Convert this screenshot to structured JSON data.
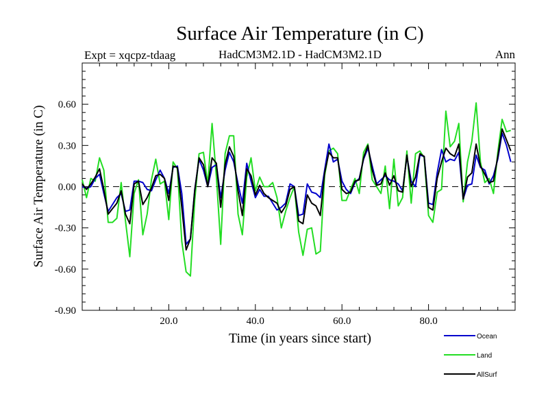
{
  "header": {
    "title": "Surface Air Temperature (in C)",
    "expt": "Expt = xqcpz-tdaag",
    "model": "HadCM3M2.1D - HadCM3M2.1D",
    "period": "Ann"
  },
  "chart_data": {
    "type": "line",
    "title": "Surface Air Temperature (in C)",
    "xlabel": "Time (in years since start)",
    "ylabel": "Surface Air Temperature (in C)",
    "xlim": [
      0,
      100
    ],
    "ylim": [
      -0.9,
      0.9
    ],
    "xticks": [
      20,
      40,
      60,
      80
    ],
    "xtick_labels": [
      "20.0",
      "40.0",
      "60.0",
      "80.0"
    ],
    "yticks": [
      -0.9,
      -0.6,
      -0.3,
      0.0,
      0.3,
      0.6
    ],
    "ytick_labels": [
      "-0.90",
      "-0.60",
      "-0.30",
      "0.00",
      "0.30",
      "0.60"
    ],
    "zero_line": "dashed",
    "legend_position": "bottom-right",
    "x": [
      0,
      1,
      2,
      3,
      4,
      5,
      6,
      7,
      8,
      9,
      10,
      11,
      12,
      13,
      14,
      15,
      16,
      17,
      18,
      19,
      20,
      21,
      22,
      23,
      24,
      25,
      26,
      27,
      28,
      29,
      30,
      31,
      32,
      33,
      34,
      35,
      36,
      37,
      38,
      39,
      40,
      41,
      42,
      43,
      44,
      45,
      46,
      47,
      48,
      49,
      50,
      51,
      52,
      53,
      54,
      55,
      56,
      57,
      58,
      59,
      60,
      61,
      62,
      63,
      64,
      65,
      66,
      67,
      68,
      69,
      70,
      71,
      72,
      73,
      74,
      75,
      76,
      77,
      78,
      79,
      80,
      81,
      82,
      83,
      84,
      85,
      86,
      87,
      88,
      89,
      90,
      91,
      92,
      93,
      94,
      95,
      96,
      97,
      98,
      99
    ],
    "series": [
      {
        "name": "Ocean",
        "color": "#0000cc",
        "values": [
          0.0,
          -0.01,
          0.0,
          0.06,
          0.09,
          -0.05,
          -0.18,
          -0.13,
          -0.08,
          -0.05,
          -0.18,
          -0.17,
          0.04,
          0.04,
          0.03,
          -0.02,
          -0.03,
          0.05,
          0.12,
          0.06,
          -0.05,
          0.14,
          0.15,
          -0.05,
          -0.42,
          -0.38,
          -0.02,
          0.2,
          0.12,
          0.0,
          0.14,
          0.16,
          -0.08,
          0.12,
          0.25,
          0.18,
          0.02,
          -0.12,
          0.17,
          0.04,
          -0.08,
          -0.02,
          -0.07,
          -0.07,
          -0.12,
          -0.17,
          -0.15,
          -0.12,
          0.02,
          0.0,
          -0.21,
          -0.2,
          0.02,
          -0.04,
          -0.05,
          -0.08,
          0.12,
          0.31,
          0.18,
          0.2,
          0.04,
          -0.02,
          -0.05,
          0.03,
          0.06,
          0.2,
          0.28,
          0.15,
          0.02,
          0.05,
          0.08,
          0.05,
          0.04,
          0.02,
          -0.03,
          0.22,
          0.04,
          0.0,
          0.23,
          0.22,
          -0.12,
          -0.13,
          0.1,
          0.27,
          0.18,
          0.2,
          0.19,
          0.25,
          -0.09,
          0.01,
          0.02,
          0.23,
          0.14,
          0.12,
          0.02,
          0.08,
          0.2,
          0.39,
          0.3,
          0.18
        ]
      },
      {
        "name": "Land",
        "color": "#22dd22",
        "values": [
          0.05,
          -0.08,
          0.06,
          0.04,
          0.21,
          0.12,
          -0.26,
          -0.26,
          -0.23,
          0.03,
          -0.25,
          -0.51,
          -0.05,
          0.05,
          -0.35,
          -0.2,
          0.05,
          0.2,
          0.02,
          0.04,
          -0.24,
          0.18,
          0.13,
          -0.4,
          -0.62,
          -0.65,
          -0.1,
          0.24,
          0.25,
          0.02,
          0.46,
          0.07,
          -0.42,
          0.24,
          0.37,
          0.37,
          -0.2,
          -0.35,
          0.07,
          0.21,
          -0.03,
          0.07,
          0.0,
          0.0,
          0.03,
          -0.08,
          -0.3,
          -0.18,
          -0.08,
          0.0,
          -0.33,
          -0.5,
          -0.31,
          -0.3,
          -0.49,
          -0.47,
          0.08,
          0.26,
          0.28,
          0.24,
          -0.1,
          -0.1,
          -0.02,
          0.06,
          -0.05,
          0.25,
          0.31,
          0.05,
          0.0,
          -0.05,
          0.15,
          -0.16,
          0.2,
          -0.14,
          -0.08,
          0.26,
          -0.12,
          0.24,
          0.26,
          0.21,
          -0.21,
          -0.26,
          -0.04,
          -0.02,
          0.55,
          0.29,
          0.33,
          0.46,
          -0.11,
          0.18,
          0.33,
          0.61,
          0.18,
          0.03,
          0.06,
          -0.05,
          0.25,
          0.49,
          0.4,
          0.41
        ]
      },
      {
        "name": "AllSurf",
        "color": "#000000",
        "values": [
          0.02,
          -0.02,
          0.02,
          0.07,
          0.13,
          -0.02,
          -0.2,
          -0.16,
          -0.12,
          -0.03,
          -0.2,
          -0.27,
          0.02,
          0.04,
          -0.13,
          -0.08,
          -0.01,
          0.08,
          0.09,
          0.06,
          -0.1,
          0.15,
          0.14,
          -0.15,
          -0.46,
          -0.38,
          -0.03,
          0.21,
          0.16,
          0.0,
          0.21,
          0.17,
          -0.15,
          0.16,
          0.29,
          0.22,
          -0.03,
          -0.21,
          0.13,
          0.08,
          -0.06,
          0.01,
          -0.05,
          -0.08,
          -0.1,
          -0.12,
          -0.19,
          -0.14,
          -0.02,
          0.0,
          -0.25,
          -0.27,
          -0.06,
          -0.12,
          -0.14,
          -0.21,
          0.1,
          0.25,
          0.21,
          0.21,
          -0.02,
          -0.05,
          -0.04,
          0.04,
          0.05,
          0.21,
          0.3,
          0.12,
          0.01,
          0.02,
          0.1,
          0.01,
          0.08,
          -0.03,
          -0.04,
          0.23,
          0.0,
          0.07,
          0.24,
          0.22,
          -0.15,
          -0.17,
          0.06,
          0.18,
          0.28,
          0.24,
          0.22,
          0.31,
          -0.09,
          0.07,
          0.1,
          0.31,
          0.15,
          0.09,
          0.03,
          0.04,
          0.22,
          0.42,
          0.34,
          0.26
        ]
      }
    ]
  }
}
